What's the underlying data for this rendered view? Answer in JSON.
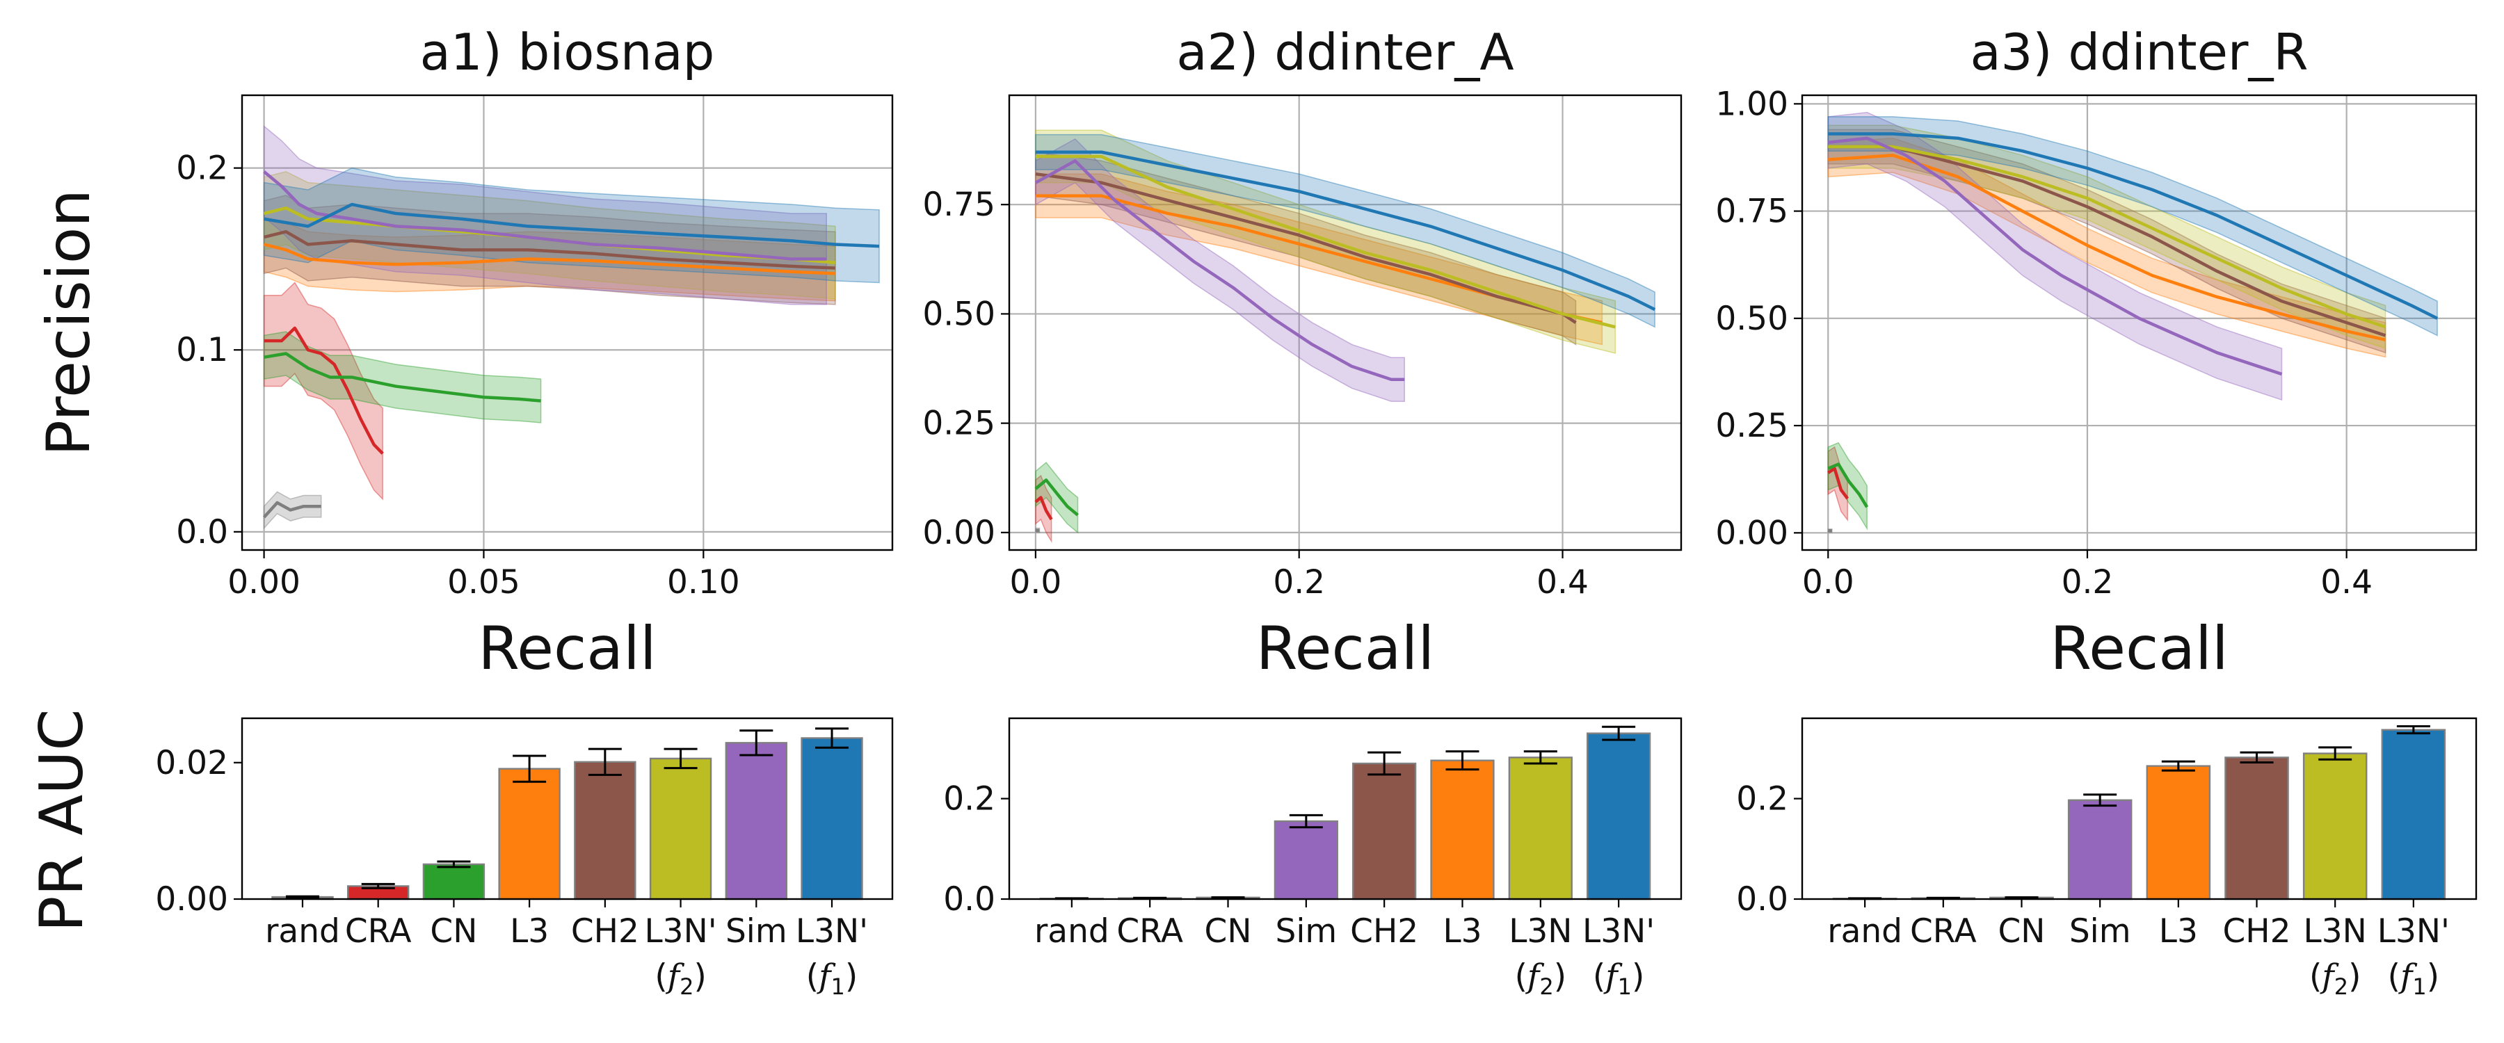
{
  "colors": {
    "rand": "#7f7f7f",
    "CRA": "#d62728",
    "CN": "#2ca02c",
    "L3": "#ff7f0e",
    "CH2": "#8c564b",
    "L3N_f2": "#bcbd22",
    "Sim": "#9467bd",
    "L3N_f1": "#1f77b4",
    "grid": "#b0b0b0",
    "bar_edge": "#808080"
  },
  "chart_data": [
    {
      "type": "line",
      "title": "a1) biosnap",
      "xlabel": "Recall",
      "ylabel": "Precision",
      "xlim": [
        -0.005,
        0.143
      ],
      "ylim": [
        -0.01,
        0.24
      ],
      "xticks": [
        0.0,
        0.05,
        0.1
      ],
      "xtick_labels": [
        "0.00",
        "0.05",
        "0.10"
      ],
      "yticks": [
        0.0,
        0.1,
        0.2
      ],
      "ytick_labels": [
        "0.0",
        "0.1",
        "0.2"
      ],
      "grid": true,
      "series": [
        {
          "key": "rand",
          "x": [
            0,
            0.003,
            0.006,
            0.009,
            0.013
          ],
          "y": [
            0.008,
            0.016,
            0.012,
            0.014,
            0.014
          ],
          "band": 0.006
        },
        {
          "key": "CRA",
          "x": [
            0,
            0.004,
            0.007,
            0.01,
            0.013,
            0.016,
            0.019,
            0.022,
            0.025,
            0.027
          ],
          "y": [
            0.105,
            0.105,
            0.112,
            0.1,
            0.098,
            0.092,
            0.078,
            0.062,
            0.048,
            0.043
          ],
          "band": 0.025
        },
        {
          "key": "CN",
          "x": [
            0,
            0.005,
            0.01,
            0.015,
            0.02,
            0.03,
            0.04,
            0.05,
            0.058,
            0.063
          ],
          "y": [
            0.096,
            0.098,
            0.09,
            0.085,
            0.085,
            0.08,
            0.077,
            0.074,
            0.073,
            0.072
          ],
          "band": 0.012
        },
        {
          "key": "L3",
          "x": [
            0,
            0.005,
            0.01,
            0.02,
            0.03,
            0.045,
            0.06,
            0.075,
            0.09,
            0.105,
            0.12,
            0.13
          ],
          "y": [
            0.158,
            0.155,
            0.15,
            0.148,
            0.147,
            0.148,
            0.15,
            0.149,
            0.147,
            0.145,
            0.143,
            0.142
          ],
          "band": 0.015
        },
        {
          "key": "CH2",
          "x": [
            0,
            0.005,
            0.01,
            0.02,
            0.03,
            0.045,
            0.06,
            0.075,
            0.09,
            0.105,
            0.12,
            0.13
          ],
          "y": [
            0.162,
            0.165,
            0.158,
            0.16,
            0.158,
            0.155,
            0.155,
            0.153,
            0.15,
            0.148,
            0.146,
            0.145
          ],
          "band": 0.02
        },
        {
          "key": "L3N_f2",
          "x": [
            0,
            0.005,
            0.01,
            0.02,
            0.03,
            0.045,
            0.06,
            0.075,
            0.09,
            0.105,
            0.12,
            0.13
          ],
          "y": [
            0.175,
            0.178,
            0.172,
            0.17,
            0.168,
            0.165,
            0.162,
            0.158,
            0.155,
            0.152,
            0.15,
            0.148
          ],
          "band": 0.02
        },
        {
          "key": "Sim",
          "x": [
            0,
            0.004,
            0.008,
            0.012,
            0.02,
            0.03,
            0.045,
            0.06,
            0.075,
            0.09,
            0.105,
            0.12,
            0.128
          ],
          "y": [
            0.198,
            0.19,
            0.18,
            0.175,
            0.172,
            0.168,
            0.166,
            0.162,
            0.158,
            0.156,
            0.153,
            0.15,
            0.15
          ],
          "band": 0.025
        },
        {
          "key": "L3N_f1",
          "x": [
            0,
            0.005,
            0.01,
            0.02,
            0.03,
            0.045,
            0.06,
            0.075,
            0.09,
            0.105,
            0.12,
            0.13,
            0.14
          ],
          "y": [
            0.172,
            0.17,
            0.168,
            0.18,
            0.175,
            0.172,
            0.168,
            0.166,
            0.164,
            0.162,
            0.16,
            0.158,
            0.157
          ],
          "band": 0.02
        }
      ]
    },
    {
      "type": "line",
      "title": "a2) ddinter_A",
      "xlabel": "Recall",
      "ylabel": "",
      "xlim": [
        -0.02,
        0.49
      ],
      "ylim": [
        -0.04,
        1.0
      ],
      "xticks": [
        0.0,
        0.2,
        0.4
      ],
      "xtick_labels": [
        "0.0",
        "0.2",
        "0.4"
      ],
      "yticks": [
        0.0,
        0.25,
        0.5,
        0.75
      ],
      "ytick_labels": [
        "0.00",
        "0.25",
        "0.50",
        "0.75"
      ],
      "grid": true,
      "series": [
        {
          "key": "rand",
          "x": [
            0,
            0.003
          ],
          "y": [
            0.005,
            0.005
          ],
          "band": 0.005
        },
        {
          "key": "CRA",
          "x": [
            0,
            0.004,
            0.008,
            0.012
          ],
          "y": [
            0.07,
            0.08,
            0.05,
            0.03
          ],
          "band": 0.05
        },
        {
          "key": "CN",
          "x": [
            0,
            0.008,
            0.016,
            0.024,
            0.032
          ],
          "y": [
            0.1,
            0.12,
            0.09,
            0.06,
            0.04
          ],
          "band": 0.04
        },
        {
          "key": "L3",
          "x": [
            0,
            0.05,
            0.1,
            0.15,
            0.2,
            0.25,
            0.3,
            0.35,
            0.4,
            0.43
          ],
          "y": [
            0.77,
            0.77,
            0.73,
            0.7,
            0.66,
            0.62,
            0.58,
            0.54,
            0.5,
            0.48
          ],
          "band": 0.05
        },
        {
          "key": "CH2",
          "x": [
            0,
            0.05,
            0.1,
            0.15,
            0.2,
            0.25,
            0.3,
            0.35,
            0.4,
            0.41
          ],
          "y": [
            0.82,
            0.8,
            0.76,
            0.72,
            0.68,
            0.63,
            0.59,
            0.54,
            0.5,
            0.48
          ],
          "band": 0.05
        },
        {
          "key": "L3N_f2",
          "x": [
            0,
            0.05,
            0.1,
            0.15,
            0.2,
            0.25,
            0.3,
            0.35,
            0.4,
            0.44
          ],
          "y": [
            0.86,
            0.86,
            0.79,
            0.74,
            0.69,
            0.64,
            0.6,
            0.55,
            0.5,
            0.47
          ],
          "band": 0.06
        },
        {
          "key": "Sim",
          "x": [
            0,
            0.03,
            0.06,
            0.09,
            0.12,
            0.15,
            0.18,
            0.21,
            0.24,
            0.27,
            0.28
          ],
          "y": [
            0.8,
            0.85,
            0.76,
            0.69,
            0.62,
            0.56,
            0.49,
            0.43,
            0.38,
            0.35,
            0.35
          ],
          "band": 0.05
        },
        {
          "key": "L3N_f1",
          "x": [
            0,
            0.05,
            0.1,
            0.15,
            0.2,
            0.25,
            0.3,
            0.35,
            0.4,
            0.45,
            0.47
          ],
          "y": [
            0.87,
            0.87,
            0.84,
            0.81,
            0.78,
            0.74,
            0.7,
            0.65,
            0.6,
            0.54,
            0.51
          ],
          "band": 0.04
        }
      ]
    },
    {
      "type": "line",
      "title": "a3) ddinter_R",
      "xlabel": "Recall",
      "ylabel": "",
      "xlim": [
        -0.02,
        0.5
      ],
      "ylim": [
        -0.04,
        1.02
      ],
      "xticks": [
        0.0,
        0.2,
        0.4
      ],
      "xtick_labels": [
        "0.0",
        "0.2",
        "0.4"
      ],
      "yticks": [
        0.0,
        0.25,
        0.5,
        0.75,
        1.0
      ],
      "ytick_labels": [
        "0.00",
        "0.25",
        "0.50",
        "0.75",
        "1.00"
      ],
      "grid": true,
      "series": [
        {
          "key": "rand",
          "x": [
            0,
            0.003
          ],
          "y": [
            0.005,
            0.005
          ],
          "band": 0.004
        },
        {
          "key": "CRA",
          "x": [
            0,
            0.005,
            0.01,
            0.015
          ],
          "y": [
            0.14,
            0.15,
            0.1,
            0.08
          ],
          "band": 0.05
        },
        {
          "key": "CN",
          "x": [
            0,
            0.008,
            0.016,
            0.024,
            0.03
          ],
          "y": [
            0.15,
            0.16,
            0.12,
            0.09,
            0.06
          ],
          "band": 0.05
        },
        {
          "key": "L3",
          "x": [
            0,
            0.05,
            0.1,
            0.15,
            0.2,
            0.25,
            0.3,
            0.35,
            0.4,
            0.43
          ],
          "y": [
            0.87,
            0.88,
            0.83,
            0.75,
            0.67,
            0.6,
            0.55,
            0.51,
            0.47,
            0.45
          ],
          "band": 0.04
        },
        {
          "key": "CH2",
          "x": [
            0,
            0.05,
            0.1,
            0.15,
            0.2,
            0.25,
            0.3,
            0.35,
            0.4,
            0.43
          ],
          "y": [
            0.9,
            0.9,
            0.86,
            0.82,
            0.76,
            0.69,
            0.61,
            0.54,
            0.49,
            0.46
          ],
          "band": 0.04
        },
        {
          "key": "L3N_f2",
          "x": [
            0,
            0.05,
            0.1,
            0.15,
            0.2,
            0.25,
            0.3,
            0.35,
            0.4,
            0.43
          ],
          "y": [
            0.9,
            0.9,
            0.87,
            0.83,
            0.78,
            0.71,
            0.64,
            0.57,
            0.51,
            0.48
          ],
          "band": 0.05
        },
        {
          "key": "Sim",
          "x": [
            0,
            0.03,
            0.06,
            0.09,
            0.12,
            0.15,
            0.18,
            0.21,
            0.24,
            0.27,
            0.3,
            0.33,
            0.35
          ],
          "y": [
            0.91,
            0.92,
            0.88,
            0.82,
            0.74,
            0.66,
            0.6,
            0.55,
            0.5,
            0.46,
            0.42,
            0.39,
            0.37
          ],
          "band": 0.06
        },
        {
          "key": "L3N_f1",
          "x": [
            0,
            0.05,
            0.1,
            0.15,
            0.2,
            0.25,
            0.3,
            0.35,
            0.4,
            0.45,
            0.47
          ],
          "y": [
            0.93,
            0.93,
            0.92,
            0.89,
            0.85,
            0.8,
            0.74,
            0.67,
            0.6,
            0.53,
            0.5
          ],
          "band": 0.04
        }
      ]
    },
    {
      "type": "bar",
      "title": "",
      "xlabel": "",
      "ylabel": "PR AUC",
      "ylim": [
        0,
        0.0265
      ],
      "yticks": [
        0.0,
        0.02
      ],
      "ytick_labels": [
        "0.00",
        "0.02"
      ],
      "categories": [
        {
          "label": "rand",
          "sub": "",
          "key": "rand",
          "value": 0.0003,
          "err": 0.0001
        },
        {
          "label": "CRA",
          "sub": "",
          "key": "CRA",
          "value": 0.0019,
          "err": 0.0003
        },
        {
          "label": "CN",
          "sub": "",
          "key": "CN",
          "value": 0.0051,
          "err": 0.0004
        },
        {
          "label": "L3",
          "sub": "",
          "key": "L3",
          "value": 0.0191,
          "err": 0.0019
        },
        {
          "label": "CH2",
          "sub": "",
          "key": "CH2",
          "value": 0.0201,
          "err": 0.0019
        },
        {
          "label": "L3N'",
          "sub": "2",
          "key": "L3N_f2",
          "value": 0.0206,
          "err": 0.0014
        },
        {
          "label": "Sim",
          "sub": "",
          "key": "Sim",
          "value": 0.0229,
          "err": 0.0018
        },
        {
          "label": "L3N'",
          "sub": "1",
          "key": "L3N_f1",
          "value": 0.0236,
          "err": 0.0014
        }
      ]
    },
    {
      "type": "bar",
      "title": "",
      "xlabel": "",
      "ylabel": "",
      "ylim": [
        0,
        0.36
      ],
      "yticks": [
        0.0,
        0.2
      ],
      "ytick_labels": [
        "0.0",
        "0.2"
      ],
      "categories": [
        {
          "label": "rand",
          "sub": "",
          "key": "rand",
          "value": 0.001,
          "err": 0.0005
        },
        {
          "label": "CRA",
          "sub": "",
          "key": "CRA",
          "value": 0.002,
          "err": 0.0005
        },
        {
          "label": "CN",
          "sub": "",
          "key": "CN",
          "value": 0.003,
          "err": 0.0005
        },
        {
          "label": "Sim",
          "sub": "",
          "key": "Sim",
          "value": 0.155,
          "err": 0.012
        },
        {
          "label": "CH2",
          "sub": "",
          "key": "CH2",
          "value": 0.27,
          "err": 0.022
        },
        {
          "label": "L3",
          "sub": "",
          "key": "L3",
          "value": 0.276,
          "err": 0.018
        },
        {
          "label": "L3N",
          "sub": "2",
          "key": "L3N_f2",
          "value": 0.282,
          "err": 0.012
        },
        {
          "label": "L3N'",
          "sub": "1",
          "key": "L3N_f1",
          "value": 0.33,
          "err": 0.013
        }
      ]
    },
    {
      "type": "bar",
      "title": "",
      "xlabel": "",
      "ylabel": "",
      "ylim": [
        0,
        0.36
      ],
      "yticks": [
        0.0,
        0.2
      ],
      "ytick_labels": [
        "0.0",
        "0.2"
      ],
      "categories": [
        {
          "label": "rand",
          "sub": "",
          "key": "rand",
          "value": 0.001,
          "err": 0.0005
        },
        {
          "label": "CRA",
          "sub": "",
          "key": "CRA",
          "value": 0.002,
          "err": 0.0005
        },
        {
          "label": "CN",
          "sub": "",
          "key": "CN",
          "value": 0.003,
          "err": 0.0005
        },
        {
          "label": "Sim",
          "sub": "",
          "key": "Sim",
          "value": 0.197,
          "err": 0.011
        },
        {
          "label": "L3",
          "sub": "",
          "key": "L3",
          "value": 0.265,
          "err": 0.009
        },
        {
          "label": "CH2",
          "sub": "",
          "key": "CH2",
          "value": 0.282,
          "err": 0.01
        },
        {
          "label": "L3N",
          "sub": "2",
          "key": "L3N_f2",
          "value": 0.29,
          "err": 0.012
        },
        {
          "label": "L3N'",
          "sub": "1",
          "key": "L3N_f1",
          "value": 0.337,
          "err": 0.007
        }
      ]
    }
  ]
}
